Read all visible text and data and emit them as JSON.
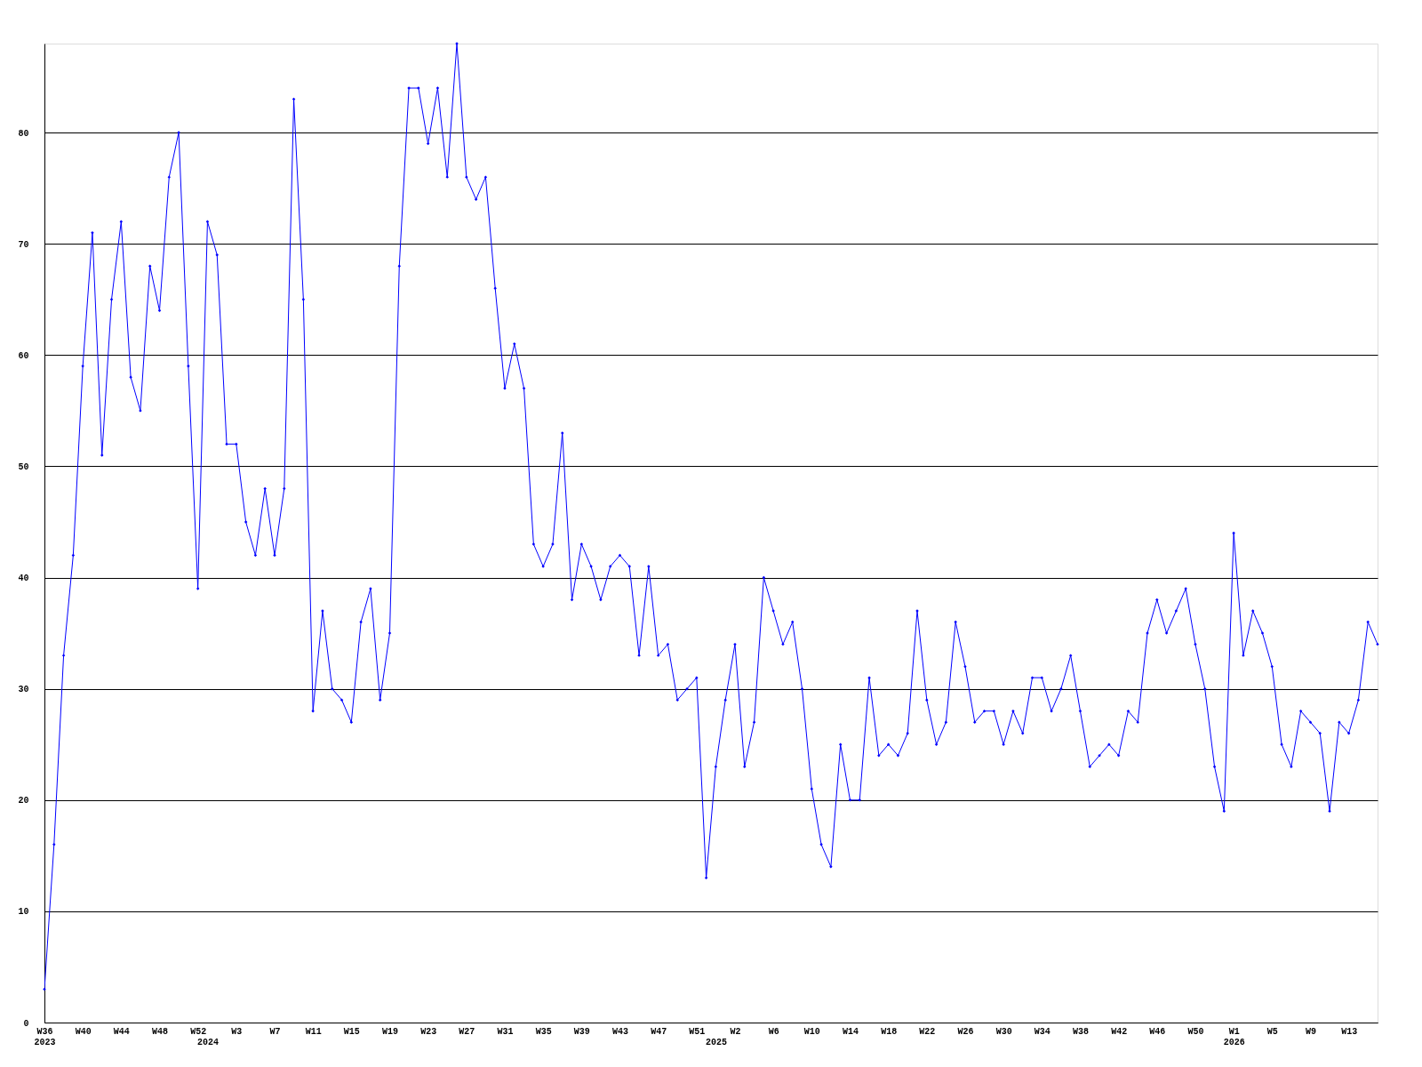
{
  "chart_data": {
    "type": "line",
    "categories": [
      "W36\n2023",
      null,
      null,
      null,
      "W40",
      null,
      null,
      null,
      "W44",
      null,
      null,
      null,
      "W48",
      null,
      null,
      null,
      "W52",
      "\n2024",
      null,
      null,
      "W3",
      null,
      null,
      null,
      "W7",
      null,
      null,
      null,
      "W11",
      null,
      null,
      null,
      "W15",
      null,
      null,
      null,
      "W19",
      null,
      null,
      null,
      "W23",
      null,
      null,
      null,
      "W27",
      null,
      null,
      null,
      "W31",
      null,
      null,
      null,
      "W35",
      null,
      null,
      null,
      "W39",
      null,
      null,
      null,
      "W43",
      null,
      null,
      null,
      "W47",
      null,
      null,
      null,
      "W51",
      null,
      "\n2025",
      null,
      "W2",
      null,
      null,
      null,
      "W6",
      null,
      null,
      null,
      "W10",
      null,
      null,
      null,
      "W14",
      null,
      null,
      null,
      "W18",
      null,
      null,
      null,
      "W22",
      null,
      null,
      null,
      "W26",
      null,
      null,
      null,
      "W30",
      null,
      null,
      null,
      "W34",
      null,
      null,
      null,
      "W38",
      null,
      null,
      null,
      "W42",
      null,
      null,
      null,
      "W46",
      null,
      null,
      null,
      "W50",
      null,
      null,
      null,
      "W1\n2026",
      null,
      null,
      null,
      "W5",
      null,
      null,
      null,
      "W9",
      null,
      null,
      null,
      "W13",
      null,
      null,
      null
    ],
    "series": [
      {
        "color": "#0000ff",
        "values": [
          3,
          16,
          33,
          42,
          59,
          71,
          51,
          65,
          72,
          58,
          55,
          68,
          64,
          76,
          80,
          59,
          39,
          72,
          69,
          52,
          52,
          45,
          42,
          48,
          42,
          48,
          83,
          65,
          28,
          37,
          30,
          29,
          27,
          36,
          39,
          29,
          35,
          68,
          84,
          84,
          79,
          84,
          76,
          88,
          76,
          74,
          76,
          66,
          57,
          61,
          57,
          43,
          41,
          43,
          53,
          38,
          43,
          41,
          38,
          41,
          42,
          41,
          33,
          41,
          33,
          34,
          29,
          30,
          31,
          13,
          23,
          29,
          34,
          23,
          27,
          40,
          37,
          34,
          36,
          30,
          21,
          16,
          14,
          25,
          20,
          20,
          31,
          24,
          25,
          24,
          26,
          37,
          29,
          25,
          27,
          36,
          32,
          27,
          28,
          28,
          25,
          28,
          26,
          31,
          31,
          28,
          30,
          33,
          28,
          23,
          24,
          25,
          24,
          28,
          27,
          35,
          38,
          35,
          37,
          39,
          34,
          30,
          23,
          19,
          44,
          33,
          37,
          35,
          32,
          25,
          23,
          28,
          27,
          26,
          19,
          27,
          26,
          29,
          36,
          34
        ]
      }
    ],
    "ylim": [
      0,
      88
    ],
    "yticks": [
      0,
      10,
      20,
      30,
      40,
      50,
      60,
      70,
      80
    ],
    "grid": "y",
    "marker": "diamond",
    "line_style": "solid",
    "legend": false
  }
}
